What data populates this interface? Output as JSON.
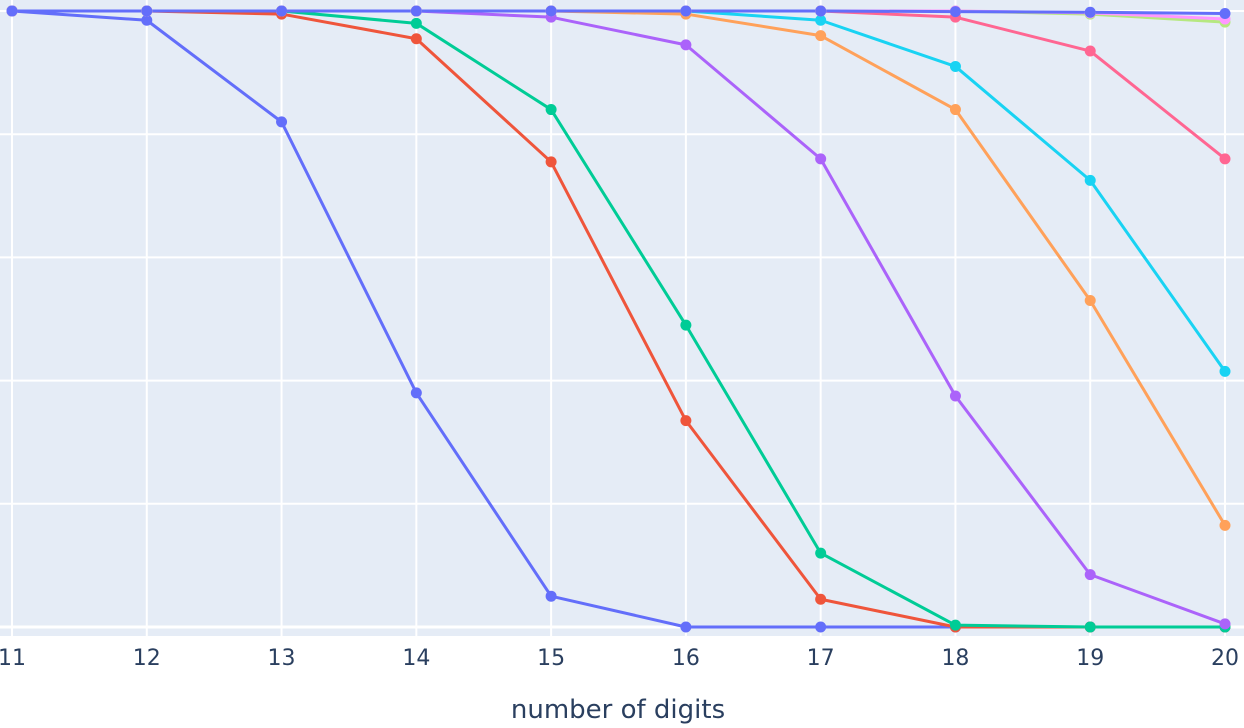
{
  "chart_data": {
    "type": "line",
    "title": "",
    "xlabel": "number of digits",
    "ylabel": "",
    "x": [
      11,
      12,
      13,
      14,
      15,
      16,
      17,
      18,
      19,
      20
    ],
    "xlim": [
      11,
      20
    ],
    "ylim": [
      0,
      1
    ],
    "grid": true,
    "background": "#e5ecf6",
    "series": [
      {
        "color": "#636efa",
        "values": [
          1.0,
          0.985,
          0.82,
          0.38,
          0.05,
          0.0,
          0.0,
          0.0,
          0.0,
          0.0
        ]
      },
      {
        "color": "#ef553b",
        "values": [
          1.0,
          1.0,
          0.995,
          0.955,
          0.755,
          0.335,
          0.045,
          0.0,
          0.0,
          0.0
        ]
      },
      {
        "color": "#00cc96",
        "values": [
          1.0,
          1.0,
          1.0,
          0.98,
          0.84,
          0.49,
          0.12,
          0.003,
          0.0,
          0.0
        ]
      },
      {
        "color": "#ab63fa",
        "values": [
          1.0,
          1.0,
          1.0,
          1.0,
          0.99,
          0.945,
          0.76,
          0.375,
          0.085,
          0.005
        ]
      },
      {
        "color": "#ffa15a",
        "values": [
          1.0,
          1.0,
          1.0,
          1.0,
          1.0,
          0.995,
          0.96,
          0.84,
          0.53,
          0.165
        ]
      },
      {
        "color": "#19d3f3",
        "values": [
          1.0,
          1.0,
          1.0,
          1.0,
          1.0,
          1.0,
          0.985,
          0.91,
          0.725,
          0.415
        ]
      },
      {
        "color": "#ff6692",
        "values": [
          1.0,
          1.0,
          1.0,
          1.0,
          1.0,
          1.0,
          1.0,
          0.99,
          0.935,
          0.76
        ]
      },
      {
        "color": "#b6e880",
        "values": [
          1.0,
          1.0,
          1.0,
          1.0,
          1.0,
          1.0,
          1.0,
          1.0,
          0.995,
          0.982
        ]
      },
      {
        "color": "#ff97ff",
        "values": [
          1.0,
          1.0,
          1.0,
          1.0,
          1.0,
          1.0,
          1.0,
          1.0,
          0.997,
          0.987
        ]
      },
      {
        "color": "#636efa",
        "values": [
          1.0,
          1.0,
          1.0,
          1.0,
          1.0,
          1.0,
          1.0,
          0.999,
          0.998,
          0.996
        ]
      }
    ]
  }
}
